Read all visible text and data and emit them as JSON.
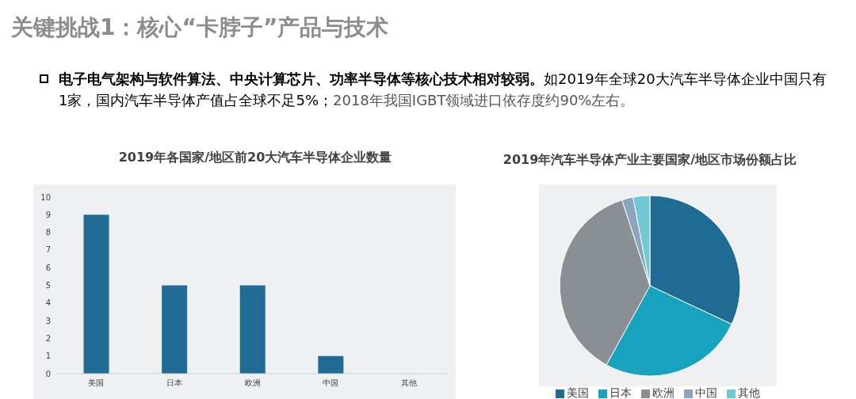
{
  "chart_data": [
    {
      "type": "other",
      "title": "关键挑战1：核心“卡脖子”产品与技术",
      "annotations": [
        "电子电气架构与软件算法、中央计算芯片、功率半导体等核心技术相对较弱。",
        "如2019年全球20大汽车半导体企业中国只有1家，国内汽车半导体产值占全球不足5%；",
        "2018年我国IGBT领域进口依存度约90%左右。"
      ]
    },
    {
      "type": "bar",
      "title": "2019年各国家/地区前20大汽车半导体企业数量",
      "categories": [
        "美国",
        "日本",
        "欧洲",
        "中国",
        "其他"
      ],
      "values": [
        9,
        5,
        5,
        1,
        0
      ],
      "color": "#1f6b94",
      "ylim": [
        0,
        10
      ],
      "yticks": [
        0,
        1,
        2,
        3,
        4,
        5,
        6,
        7,
        8,
        9,
        10
      ],
      "grid": false
    },
    {
      "type": "pie",
      "title": "2019年汽车半导体产业主要国家/地区市场份额占比",
      "categories": [
        "美国",
        "日本",
        "欧洲",
        "中国",
        "其他"
      ],
      "values": [
        32,
        26,
        37,
        2,
        3
      ],
      "colors": [
        "#1f6b94",
        "#17a2bd",
        "#8a8f96",
        "#8aa3bf",
        "#6fc8d2"
      ],
      "legend": "bottom"
    }
  ]
}
